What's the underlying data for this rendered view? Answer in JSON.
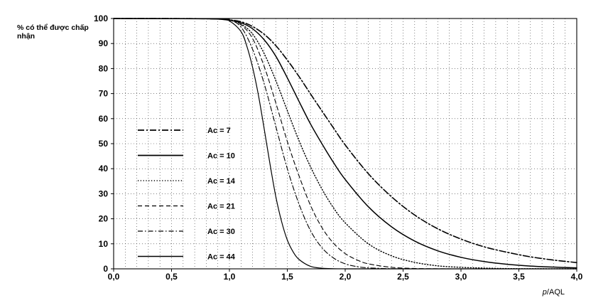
{
  "chart_data": {
    "type": "line",
    "title": "",
    "ylabel": "% có thể được chấp nhận",
    "xlabel": "p/AQL",
    "xlabel_italic_part": "p",
    "xlabel_rest": "/AQL",
    "xlim": [
      0.0,
      4.0
    ],
    "ylim": [
      0,
      100
    ],
    "x_ticks": [
      "0,0",
      "0,5",
      "1,0",
      "1,5",
      "2,0",
      "2,5",
      "3,0",
      "3,5",
      "4,0"
    ],
    "x_tick_values": [
      0.0,
      0.5,
      1.0,
      1.5,
      2.0,
      2.5,
      3.0,
      3.5,
      4.0
    ],
    "y_ticks": [
      "0",
      "10",
      "20",
      "30",
      "40",
      "50",
      "60",
      "70",
      "80",
      "90",
      "100"
    ],
    "y_tick_values": [
      0,
      10,
      20,
      30,
      40,
      50,
      60,
      70,
      80,
      90,
      100
    ],
    "grid": true,
    "legend_position": "left",
    "series": [
      {
        "name": "Ac = 7",
        "ac": 7,
        "style": "dashdot-long",
        "x": [
          0.0,
          0.8,
          1.0,
          1.1,
          1.2,
          1.3,
          1.4,
          1.5,
          1.6,
          1.7,
          1.8,
          1.9,
          2.0,
          2.2,
          2.4,
          2.6,
          2.8,
          3.0,
          3.2,
          3.4,
          3.6,
          3.8,
          4.0
        ],
        "y": [
          100,
          99.9,
          99.4,
          98.7,
          96.8,
          93.7,
          89.2,
          83.4,
          76.9,
          69.9,
          63.0,
          56.2,
          49.5,
          38.0,
          28.8,
          21.5,
          16.0,
          11.9,
          8.8,
          6.6,
          4.8,
          3.5,
          2.5
        ]
      },
      {
        "name": "Ac = 10",
        "ac": 10,
        "style": "solid",
        "x": [
          0.0,
          0.8,
          1.0,
          1.1,
          1.2,
          1.3,
          1.4,
          1.5,
          1.6,
          1.7,
          1.8,
          1.9,
          2.0,
          2.2,
          2.4,
          2.6,
          2.8,
          3.0,
          3.2,
          3.4,
          3.6,
          3.8,
          4.0
        ],
        "y": [
          100,
          99.9,
          99.3,
          98.3,
          95.9,
          91.5,
          85.0,
          76.3,
          67.0,
          57.9,
          49.9,
          42.4,
          35.7,
          24.8,
          16.8,
          11.1,
          7.2,
          4.6,
          2.9,
          1.8,
          1.1,
          0.7,
          0.4
        ]
      },
      {
        "name": "Ac = 14",
        "ac": 14,
        "style": "dotted",
        "x": [
          0.0,
          0.9,
          1.0,
          1.1,
          1.2,
          1.3,
          1.4,
          1.5,
          1.6,
          1.7,
          1.8,
          1.9,
          2.0,
          2.2,
          2.4,
          2.6,
          2.8,
          3.0,
          3.2,
          3.4,
          3.6,
          4.0
        ],
        "y": [
          100,
          99.9,
          99.4,
          97.8,
          93.8,
          86.0,
          75.3,
          63.2,
          51.3,
          40.8,
          31.8,
          24.3,
          18.4,
          10.0,
          5.2,
          2.6,
          1.2,
          0.6,
          0.3,
          0.1,
          0.05,
          0
        ]
      },
      {
        "name": "Ac = 21",
        "ac": 21,
        "style": "dashed",
        "x": [
          0.0,
          0.9,
          1.0,
          1.1,
          1.2,
          1.3,
          1.4,
          1.5,
          1.6,
          1.7,
          1.8,
          1.9,
          2.0,
          2.1,
          2.2,
          2.4,
          2.6,
          2.8,
          3.0,
          4.0
        ],
        "y": [
          100,
          99.9,
          99.5,
          97.5,
          92.0,
          80.9,
          66.4,
          50.9,
          37.3,
          25.4,
          16.4,
          10.2,
          6.1,
          3.6,
          2.0,
          0.6,
          0.15,
          0.03,
          0,
          0
        ]
      },
      {
        "name": "Ac = 30",
        "ac": 30,
        "style": "dashdot",
        "x": [
          0.0,
          0.9,
          1.0,
          1.1,
          1.2,
          1.3,
          1.4,
          1.5,
          1.6,
          1.7,
          1.8,
          1.9,
          2.0,
          2.1,
          2.2,
          2.4,
          2.6,
          3.0,
          4.0
        ],
        "y": [
          100,
          99.9,
          99.4,
          96.6,
          87.7,
          74.0,
          57.0,
          40.0,
          26.0,
          15.3,
          8.4,
          4.3,
          2.0,
          0.9,
          0.4,
          0.05,
          0,
          0,
          0
        ]
      },
      {
        "name": "Ac = 44",
        "ac": 44,
        "style": "solid-thin",
        "x": [
          0.0,
          0.9,
          1.0,
          1.1,
          1.15,
          1.2,
          1.25,
          1.3,
          1.35,
          1.4,
          1.45,
          1.5,
          1.55,
          1.6,
          1.7,
          1.8,
          1.9,
          2.0,
          2.2,
          4.0
        ],
        "y": [
          100,
          99.9,
          99.0,
          94.8,
          89.0,
          80.5,
          69.5,
          56.0,
          42.0,
          29.0,
          19.0,
          11.5,
          6.8,
          3.8,
          1.0,
          0.25,
          0.05,
          0.01,
          0,
          0
        ]
      }
    ]
  }
}
